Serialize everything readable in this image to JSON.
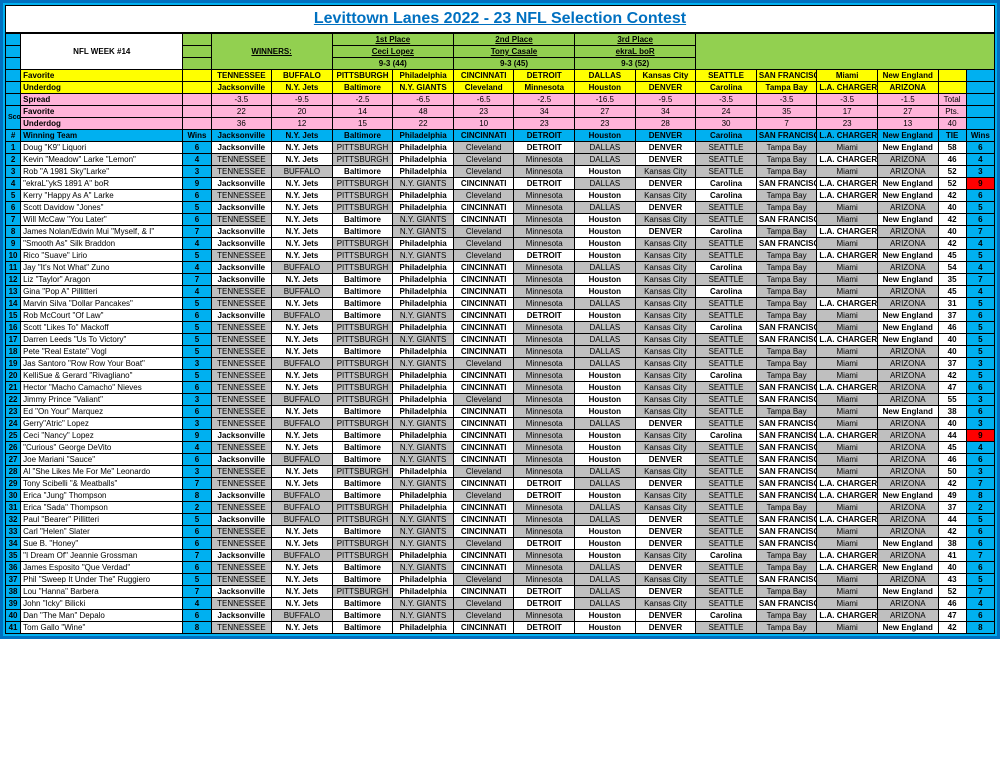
{
  "title": "Levittown Lanes 2022 - 23  NFL Selection Contest",
  "week_label": "NFL WEEK #14",
  "winners_label": "WINNERS:",
  "places": [
    {
      "p": "1st Place",
      "n": "Ceci Lopez",
      "r": "9-3 (44)"
    },
    {
      "p": "2nd Place",
      "n": "Tony Casale",
      "r": "9-3 (45)"
    },
    {
      "p": "3rd Place",
      "n": "ekraL boR",
      "r": "9-3 (52)"
    }
  ],
  "hdr": {
    "fav": [
      "TENNESSEE",
      "BUFFALO",
      "PITTSBURGH",
      "Philadelphia",
      "CINCINNATI",
      "DETROIT",
      "DALLAS",
      "Kansas City",
      "SEATTLE",
      "SAN FRANCISCO",
      "Miami",
      "New England"
    ],
    "und": [
      "Jacksonville",
      "N.Y. Jets",
      "Baltimore",
      "N.Y. GIANTS",
      "Cleveland",
      "Minnesota",
      "Houston",
      "DENVER",
      "Carolina",
      "Tampa Bay",
      "L.A. CHARGERS",
      "ARIZONA"
    ],
    "spr": [
      "-3.5",
      "-9.5",
      "-2.5",
      "-6.5",
      "-6.5",
      "-2.5",
      "-16.5",
      "-9.5",
      "-3.5",
      "-3.5",
      "-3.5",
      "-1.5"
    ],
    "sfav": [
      "22",
      "20",
      "14",
      "48",
      "23",
      "34",
      "27",
      "34",
      "24",
      "35",
      "17",
      "27"
    ],
    "sund": [
      "36",
      "12",
      "15",
      "22",
      "10",
      "23",
      "23",
      "28",
      "30",
      "7",
      "23",
      "13"
    ],
    "win": [
      "Jacksonville",
      "N.Y. Jets",
      "Baltimore",
      "Philadelphia",
      "CINCINNATI",
      "DETROIT",
      "Houston",
      "DENVER",
      "Carolina",
      "SAN FRANCISCO",
      "L.A. CHARGERS",
      "New England"
    ]
  },
  "totals": {
    "total": "Total",
    "pts": "Pts.",
    "fourty": "40",
    "tie": "TIE",
    "wins": "Wins"
  },
  "score_label": "Score",
  "labels": {
    "fav": "Favorite",
    "und": "Underdog",
    "spr": "Spread",
    "wt": "Winning Team",
    "w": "Wins",
    "num": "#"
  },
  "rows": [
    {
      "n": 1,
      "name": "Doug \"K9\" Liquori",
      "w": 6,
      "p": [
        "Jacksonville",
        "N.Y. Jets",
        "PITTSBURGH",
        "Philadelphia",
        "Cleveland",
        "DETROIT",
        "DALLAS",
        "DENVER",
        "SEATTLE",
        "Tampa Bay",
        "Miami",
        "New England"
      ],
      "t": 58,
      "rw": 6
    },
    {
      "n": 2,
      "name": "Kevin \"Meadow\" Larke \"Lemon\"",
      "w": 4,
      "p": [
        "TENNESSEE",
        "N.Y. Jets",
        "PITTSBURGH",
        "Philadelphia",
        "Cleveland",
        "Minnesota",
        "DALLAS",
        "DENVER",
        "SEATTLE",
        "Tampa Bay",
        "L.A. CHARGERS",
        "ARIZONA"
      ],
      "t": 46,
      "rw": 4
    },
    {
      "n": 3,
      "name": "Rob \"A 1981 Sky\"Larke\"",
      "w": 3,
      "p": [
        "TENNESSEE",
        "BUFFALO",
        "Baltimore",
        "Philadelphia",
        "Cleveland",
        "Minnesota",
        "Houston",
        "Kansas City",
        "SEATTLE",
        "Tampa Bay",
        "Miami",
        "ARIZONA"
      ],
      "t": 52,
      "rw": 3
    },
    {
      "n": 4,
      "name": "\"ekraL\"ykS 1891 A\" boR",
      "w": 9,
      "p": [
        "Jacksonville",
        "N.Y. Jets",
        "PITTSBURGH",
        "N.Y. GIANTS",
        "CINCINNATI",
        "DETROIT",
        "DALLAS",
        "DENVER",
        "Carolina",
        "SAN FRANCISCO",
        "L.A. CHARGERS",
        "New England"
      ],
      "t": 52,
      "rw": 9,
      "red": true
    },
    {
      "n": 5,
      "name": "Kerry \"Happy As A\" Larke",
      "w": 6,
      "p": [
        "TENNESSEE",
        "N.Y. Jets",
        "PITTSBURGH",
        "Philadelphia",
        "Cleveland",
        "Minnesota",
        "Houston",
        "Kansas City",
        "Carolina",
        "Tampa Bay",
        "L.A. CHARGERS",
        "New England"
      ],
      "t": 42,
      "rw": 6
    },
    {
      "n": 6,
      "name": "Scott Davidow \"Jones\"",
      "w": 5,
      "p": [
        "Jacksonville",
        "N.Y. Jets",
        "PITTSBURGH",
        "Philadelphia",
        "CINCINNATI",
        "Minnesota",
        "DALLAS",
        "DENVER",
        "SEATTLE",
        "Tampa Bay",
        "Miami",
        "ARIZONA"
      ],
      "t": 40,
      "rw": 5
    },
    {
      "n": 7,
      "name": "Will McCaw \"You Later\"",
      "w": 6,
      "p": [
        "TENNESSEE",
        "N.Y. Jets",
        "Baltimore",
        "N.Y. GIANTS",
        "CINCINNATI",
        "Minnesota",
        "Houston",
        "Kansas City",
        "SEATTLE",
        "SAN FRANCISCO",
        "Miami",
        "New England"
      ],
      "t": 42,
      "rw": 6
    },
    {
      "n": 8,
      "name": "James Nolan/Edwin Mui \"Myself, & I\"",
      "w": 7,
      "p": [
        "Jacksonville",
        "N.Y. Jets",
        "Baltimore",
        "N.Y. GIANTS",
        "Cleveland",
        "Minnesota",
        "Houston",
        "DENVER",
        "Carolina",
        "Tampa Bay",
        "L.A. CHARGERS",
        "ARIZONA"
      ],
      "t": 40,
      "rw": 7
    },
    {
      "n": 9,
      "name": "\"Smooth As\" Silk Braddon",
      "w": 4,
      "p": [
        "Jacksonville",
        "N.Y. Jets",
        "PITTSBURGH",
        "Philadelphia",
        "Cleveland",
        "Minnesota",
        "Houston",
        "Kansas City",
        "SEATTLE",
        "SAN FRANCISCO",
        "Miami",
        "ARIZONA"
      ],
      "t": 42,
      "rw": 4
    },
    {
      "n": 10,
      "name": "Rico \"Suave\" Lirio",
      "w": 5,
      "p": [
        "TENNESSEE",
        "N.Y. Jets",
        "PITTSBURGH",
        "N.Y. GIANTS",
        "Cleveland",
        "DETROIT",
        "Houston",
        "Kansas City",
        "SEATTLE",
        "Tampa Bay",
        "L.A. CHARGERS",
        "New England"
      ],
      "t": 45,
      "rw": 5
    },
    {
      "n": 11,
      "name": "Jay \"It's Not What\" Zuno",
      "w": 4,
      "p": [
        "Jacksonville",
        "BUFFALO",
        "PITTSBURGH",
        "Philadelphia",
        "CINCINNATI",
        "Minnesota",
        "DALLAS",
        "Kansas City",
        "Carolina",
        "Tampa Bay",
        "Miami",
        "ARIZONA"
      ],
      "t": 54,
      "rw": 4
    },
    {
      "n": 12,
      "name": "Liz \"Taylor\" Aragon",
      "w": 7,
      "p": [
        "Jacksonville",
        "N.Y. Jets",
        "Baltimore",
        "Philadelphia",
        "CINCINNATI",
        "Minnesota",
        "Houston",
        "Kansas City",
        "SEATTLE",
        "Tampa Bay",
        "Miami",
        "New England"
      ],
      "t": 35,
      "rw": 7
    },
    {
      "n": 13,
      "name": "Gina \"Pop A\" Pillitteri",
      "w": 4,
      "p": [
        "TENNESSEE",
        "BUFFALO",
        "Baltimore",
        "Philadelphia",
        "CINCINNATI",
        "Minnesota",
        "Houston",
        "Kansas City",
        "Carolina",
        "Tampa Bay",
        "Miami",
        "ARIZONA"
      ],
      "t": 45,
      "rw": 4
    },
    {
      "n": 14,
      "name": "Marvin Silva \"Dollar Pancakes\"",
      "w": 5,
      "p": [
        "TENNESSEE",
        "N.Y. Jets",
        "Baltimore",
        "Philadelphia",
        "CINCINNATI",
        "Minnesota",
        "DALLAS",
        "Kansas City",
        "SEATTLE",
        "Tampa Bay",
        "L.A. CHARGERS",
        "ARIZONA"
      ],
      "t": 31,
      "rw": 5
    },
    {
      "n": 15,
      "name": "Rob McCourt \"Of Law\"",
      "w": 6,
      "p": [
        "Jacksonville",
        "BUFFALO",
        "Baltimore",
        "N.Y. GIANTS",
        "CINCINNATI",
        "DETROIT",
        "Houston",
        "Kansas City",
        "SEATTLE",
        "Tampa Bay",
        "Miami",
        "New England"
      ],
      "t": 37,
      "rw": 6
    },
    {
      "n": 16,
      "name": "Scott \"Likes To\" Mackoff",
      "w": 5,
      "p": [
        "TENNESSEE",
        "N.Y. Jets",
        "PITTSBURGH",
        "Philadelphia",
        "CINCINNATI",
        "Minnesota",
        "DALLAS",
        "Kansas City",
        "Carolina",
        "SAN FRANCISCO",
        "Miami",
        "New England"
      ],
      "t": 46,
      "rw": 5
    },
    {
      "n": 17,
      "name": "Darren Leeds \"Us To Victory\"",
      "w": 5,
      "p": [
        "TENNESSEE",
        "N.Y. Jets",
        "PITTSBURGH",
        "N.Y. GIANTS",
        "CINCINNATI",
        "Minnesota",
        "DALLAS",
        "Kansas City",
        "SEATTLE",
        "SAN FRANCISCO",
        "L.A. CHARGERS",
        "New England"
      ],
      "t": 40,
      "rw": 5
    },
    {
      "n": 18,
      "name": "Pete \"Real Estate\" Vogl",
      "w": 5,
      "p": [
        "TENNESSEE",
        "N.Y. Jets",
        "Baltimore",
        "Philadelphia",
        "CINCINNATI",
        "Minnesota",
        "DALLAS",
        "Kansas City",
        "SEATTLE",
        "Tampa Bay",
        "Miami",
        "ARIZONA"
      ],
      "t": 40,
      "rw": 5
    },
    {
      "n": 19,
      "name": "Jas Santoro \"Row Row Your Boat\"",
      "w": 3,
      "p": [
        "TENNESSEE",
        "BUFFALO",
        "PITTSBURGH",
        "N.Y. GIANTS",
        "Cleveland",
        "Minnesota",
        "DALLAS",
        "Kansas City",
        "SEATTLE",
        "Tampa Bay",
        "Miami",
        "ARIZONA"
      ],
      "t": 37,
      "rw": 3
    },
    {
      "n": 20,
      "name": "KelliSue & Gerard \"Rivagliano\"",
      "w": 5,
      "p": [
        "TENNESSEE",
        "N.Y. Jets",
        "PITTSBURGH",
        "Philadelphia",
        "CINCINNATI",
        "Minnesota",
        "Houston",
        "Kansas City",
        "Carolina",
        "Tampa Bay",
        "Miami",
        "ARIZONA"
      ],
      "t": 42,
      "rw": 5
    },
    {
      "n": 21,
      "name": "Hector \"Macho Camacho\" Nieves",
      "w": 6,
      "p": [
        "TENNESSEE",
        "N.Y. Jets",
        "PITTSBURGH",
        "Philadelphia",
        "CINCINNATI",
        "Minnesota",
        "Houston",
        "Kansas City",
        "SEATTLE",
        "SAN FRANCISCO",
        "L.A. CHARGERS",
        "ARIZONA"
      ],
      "t": 47,
      "rw": 6
    },
    {
      "n": 22,
      "name": "Jimmy Prince \"Valiant\"",
      "w": 3,
      "p": [
        "TENNESSEE",
        "BUFFALO",
        "PITTSBURGH",
        "Philadelphia",
        "Cleveland",
        "Minnesota",
        "Houston",
        "Kansas City",
        "SEATTLE",
        "SAN FRANCISCO",
        "Miami",
        "ARIZONA"
      ],
      "t": 55,
      "rw": 3
    },
    {
      "n": 23,
      "name": "Ed \"On Your\" Marquez",
      "w": 6,
      "p": [
        "TENNESSEE",
        "N.Y. Jets",
        "Baltimore",
        "Philadelphia",
        "CINCINNATI",
        "Minnesota",
        "Houston",
        "Kansas City",
        "SEATTLE",
        "Tampa Bay",
        "Miami",
        "New England"
      ],
      "t": 38,
      "rw": 6
    },
    {
      "n": 24,
      "name": "Gerry\"Atric\" Lopez",
      "w": 3,
      "p": [
        "TENNESSEE",
        "BUFFALO",
        "PITTSBURGH",
        "N.Y. GIANTS",
        "CINCINNATI",
        "Minnesota",
        "DALLAS",
        "DENVER",
        "SEATTLE",
        "SAN FRANCISCO",
        "Miami",
        "ARIZONA"
      ],
      "t": 40,
      "rw": 3
    },
    {
      "n": 25,
      "name": "Ceci \"Nancy\" Lopez",
      "w": 9,
      "p": [
        "Jacksonville",
        "N.Y. Jets",
        "Baltimore",
        "Philadelphia",
        "CINCINNATI",
        "Minnesota",
        "Houston",
        "Kansas City",
        "Carolina",
        "SAN FRANCISCO",
        "L.A. CHARGERS",
        "ARIZONA"
      ],
      "t": 44,
      "rw": 9,
      "red": true
    },
    {
      "n": 26,
      "name": "\"Curious\" George DeVito",
      "w": 4,
      "p": [
        "TENNESSEE",
        "N.Y. Jets",
        "Baltimore",
        "N.Y. GIANTS",
        "CINCINNATI",
        "Minnesota",
        "Houston",
        "Kansas City",
        "SEATTLE",
        "SAN FRANCISCO",
        "Miami",
        "ARIZONA"
      ],
      "t": 45,
      "rw": 4
    },
    {
      "n": 27,
      "name": "Joe Mariani \"Sauce\"",
      "w": 6,
      "p": [
        "Jacksonville",
        "BUFFALO",
        "Baltimore",
        "N.Y. GIANTS",
        "CINCINNATI",
        "Minnesota",
        "Houston",
        "DENVER",
        "SEATTLE",
        "SAN FRANCISCO",
        "Miami",
        "ARIZONA"
      ],
      "t": 46,
      "rw": 6
    },
    {
      "n": 28,
      "name": "Al \"She Likes Me For Me\" Leonardo",
      "w": 3,
      "p": [
        "TENNESSEE",
        "N.Y. Jets",
        "PITTSBURGH",
        "Philadelphia",
        "Cleveland",
        "Minnesota",
        "DALLAS",
        "Kansas City",
        "SEATTLE",
        "SAN FRANCISCO",
        "Miami",
        "ARIZONA"
      ],
      "t": 50,
      "rw": 3
    },
    {
      "n": 29,
      "name": "Tony Scibelli \"& Meatballs\"",
      "w": 7,
      "p": [
        "TENNESSEE",
        "N.Y. Jets",
        "Baltimore",
        "N.Y. GIANTS",
        "CINCINNATI",
        "DETROIT",
        "DALLAS",
        "DENVER",
        "SEATTLE",
        "SAN FRANCISCO",
        "L.A. CHARGERS",
        "ARIZONA"
      ],
      "t": 42,
      "rw": 7
    },
    {
      "n": 30,
      "name": "Erica \"Jung\" Thompson",
      "w": 8,
      "p": [
        "Jacksonville",
        "BUFFALO",
        "Baltimore",
        "Philadelphia",
        "Cleveland",
        "DETROIT",
        "Houston",
        "Kansas City",
        "SEATTLE",
        "SAN FRANCISCO",
        "L.A. CHARGERS",
        "New England"
      ],
      "t": 49,
      "rw": 8
    },
    {
      "n": 31,
      "name": "Erica \"Sada\" Thompson",
      "w": 2,
      "p": [
        "TENNESSEE",
        "BUFFALO",
        "PITTSBURGH",
        "Philadelphia",
        "CINCINNATI",
        "Minnesota",
        "DALLAS",
        "Kansas City",
        "SEATTLE",
        "Tampa Bay",
        "Miami",
        "ARIZONA"
      ],
      "t": 37,
      "rw": 2
    },
    {
      "n": 32,
      "name": "Paul \"Bearer\" Pillitteri",
      "w": 5,
      "p": [
        "Jacksonville",
        "BUFFALO",
        "PITTSBURGH",
        "N.Y. GIANTS",
        "CINCINNATI",
        "Minnesota",
        "DALLAS",
        "DENVER",
        "SEATTLE",
        "SAN FRANCISCO",
        "L.A. CHARGERS",
        "ARIZONA"
      ],
      "t": 44,
      "rw": 5
    },
    {
      "n": 33,
      "name": "Carl \"Helen\" Slater",
      "w": 6,
      "p": [
        "TENNESSEE",
        "N.Y. Jets",
        "Baltimore",
        "N.Y. GIANTS",
        "CINCINNATI",
        "Minnesota",
        "Houston",
        "DENVER",
        "SEATTLE",
        "SAN FRANCISCO",
        "Miami",
        "ARIZONA"
      ],
      "t": 42,
      "rw": 6
    },
    {
      "n": 34,
      "name": "Sue B. \"Honey\"",
      "w": 6,
      "p": [
        "TENNESSEE",
        "N.Y. Jets",
        "PITTSBURGH",
        "N.Y. GIANTS",
        "Cleveland",
        "DETROIT",
        "Houston",
        "DENVER",
        "SEATTLE",
        "SAN FRANCISCO",
        "Miami",
        "New England"
      ],
      "t": 38,
      "rw": 6
    },
    {
      "n": 35,
      "name": "\"I Dream Of\" Jeannie Grossman",
      "w": 7,
      "p": [
        "Jacksonville",
        "BUFFALO",
        "PITTSBURGH",
        "Philadelphia",
        "CINCINNATI",
        "Minnesota",
        "Houston",
        "Kansas City",
        "Carolina",
        "Tampa Bay",
        "L.A. CHARGERS",
        "ARIZONA"
      ],
      "t": 41,
      "rw": 7
    },
    {
      "n": 36,
      "name": "James Esposito \"Que Verdad\"",
      "w": 6,
      "p": [
        "TENNESSEE",
        "N.Y. Jets",
        "Baltimore",
        "N.Y. GIANTS",
        "CINCINNATI",
        "Minnesota",
        "DALLAS",
        "DENVER",
        "SEATTLE",
        "Tampa Bay",
        "L.A. CHARGERS",
        "New England"
      ],
      "t": 40,
      "rw": 6
    },
    {
      "n": 37,
      "name": "Phil \"Sweep It Under The\"  Ruggiero",
      "w": 5,
      "p": [
        "TENNESSEE",
        "N.Y. Jets",
        "Baltimore",
        "Philadelphia",
        "Cleveland",
        "Minnesota",
        "DALLAS",
        "Kansas City",
        "SEATTLE",
        "SAN FRANCISCO",
        "Miami",
        "ARIZONA"
      ],
      "t": 43,
      "rw": 5
    },
    {
      "n": 38,
      "name": "Lou \"Hanna\" Barbera",
      "w": 7,
      "p": [
        "Jacksonville",
        "N.Y. Jets",
        "PITTSBURGH",
        "Philadelphia",
        "CINCINNATI",
        "DETROIT",
        "DALLAS",
        "DENVER",
        "SEATTLE",
        "Tampa Bay",
        "Miami",
        "New England"
      ],
      "t": 52,
      "rw": 7
    },
    {
      "n": 39,
      "name": "John \"Icky\" Bilicki",
      "w": 4,
      "p": [
        "TENNESSEE",
        "N.Y. Jets",
        "Baltimore",
        "N.Y. GIANTS",
        "Cleveland",
        "DETROIT",
        "DALLAS",
        "Kansas City",
        "SEATTLE",
        "SAN FRANCISCO",
        "Miami",
        "ARIZONA"
      ],
      "t": 46,
      "rw": 4
    },
    {
      "n": 40,
      "name": "Dan \"The Man\" Depalo",
      "w": 6,
      "p": [
        "Jacksonville",
        "BUFFALO",
        "Baltimore",
        "N.Y. GIANTS",
        "Cleveland",
        "Minnesota",
        "Houston",
        "DENVER",
        "Carolina",
        "Tampa Bay",
        "L.A. CHARGERS",
        "ARIZONA"
      ],
      "t": 47,
      "rw": 6
    },
    {
      "n": 41,
      "name": "Tom Gallo \"Wine\"",
      "w": 8,
      "p": [
        "TENNESSEE",
        "N.Y. Jets",
        "Baltimore",
        "Philadelphia",
        "CINCINNATI",
        "DETROIT",
        "Houston",
        "DENVER",
        "SEATTLE",
        "Tampa Bay",
        "Miami",
        "New England"
      ],
      "t": 42,
      "rw": 8
    }
  ]
}
